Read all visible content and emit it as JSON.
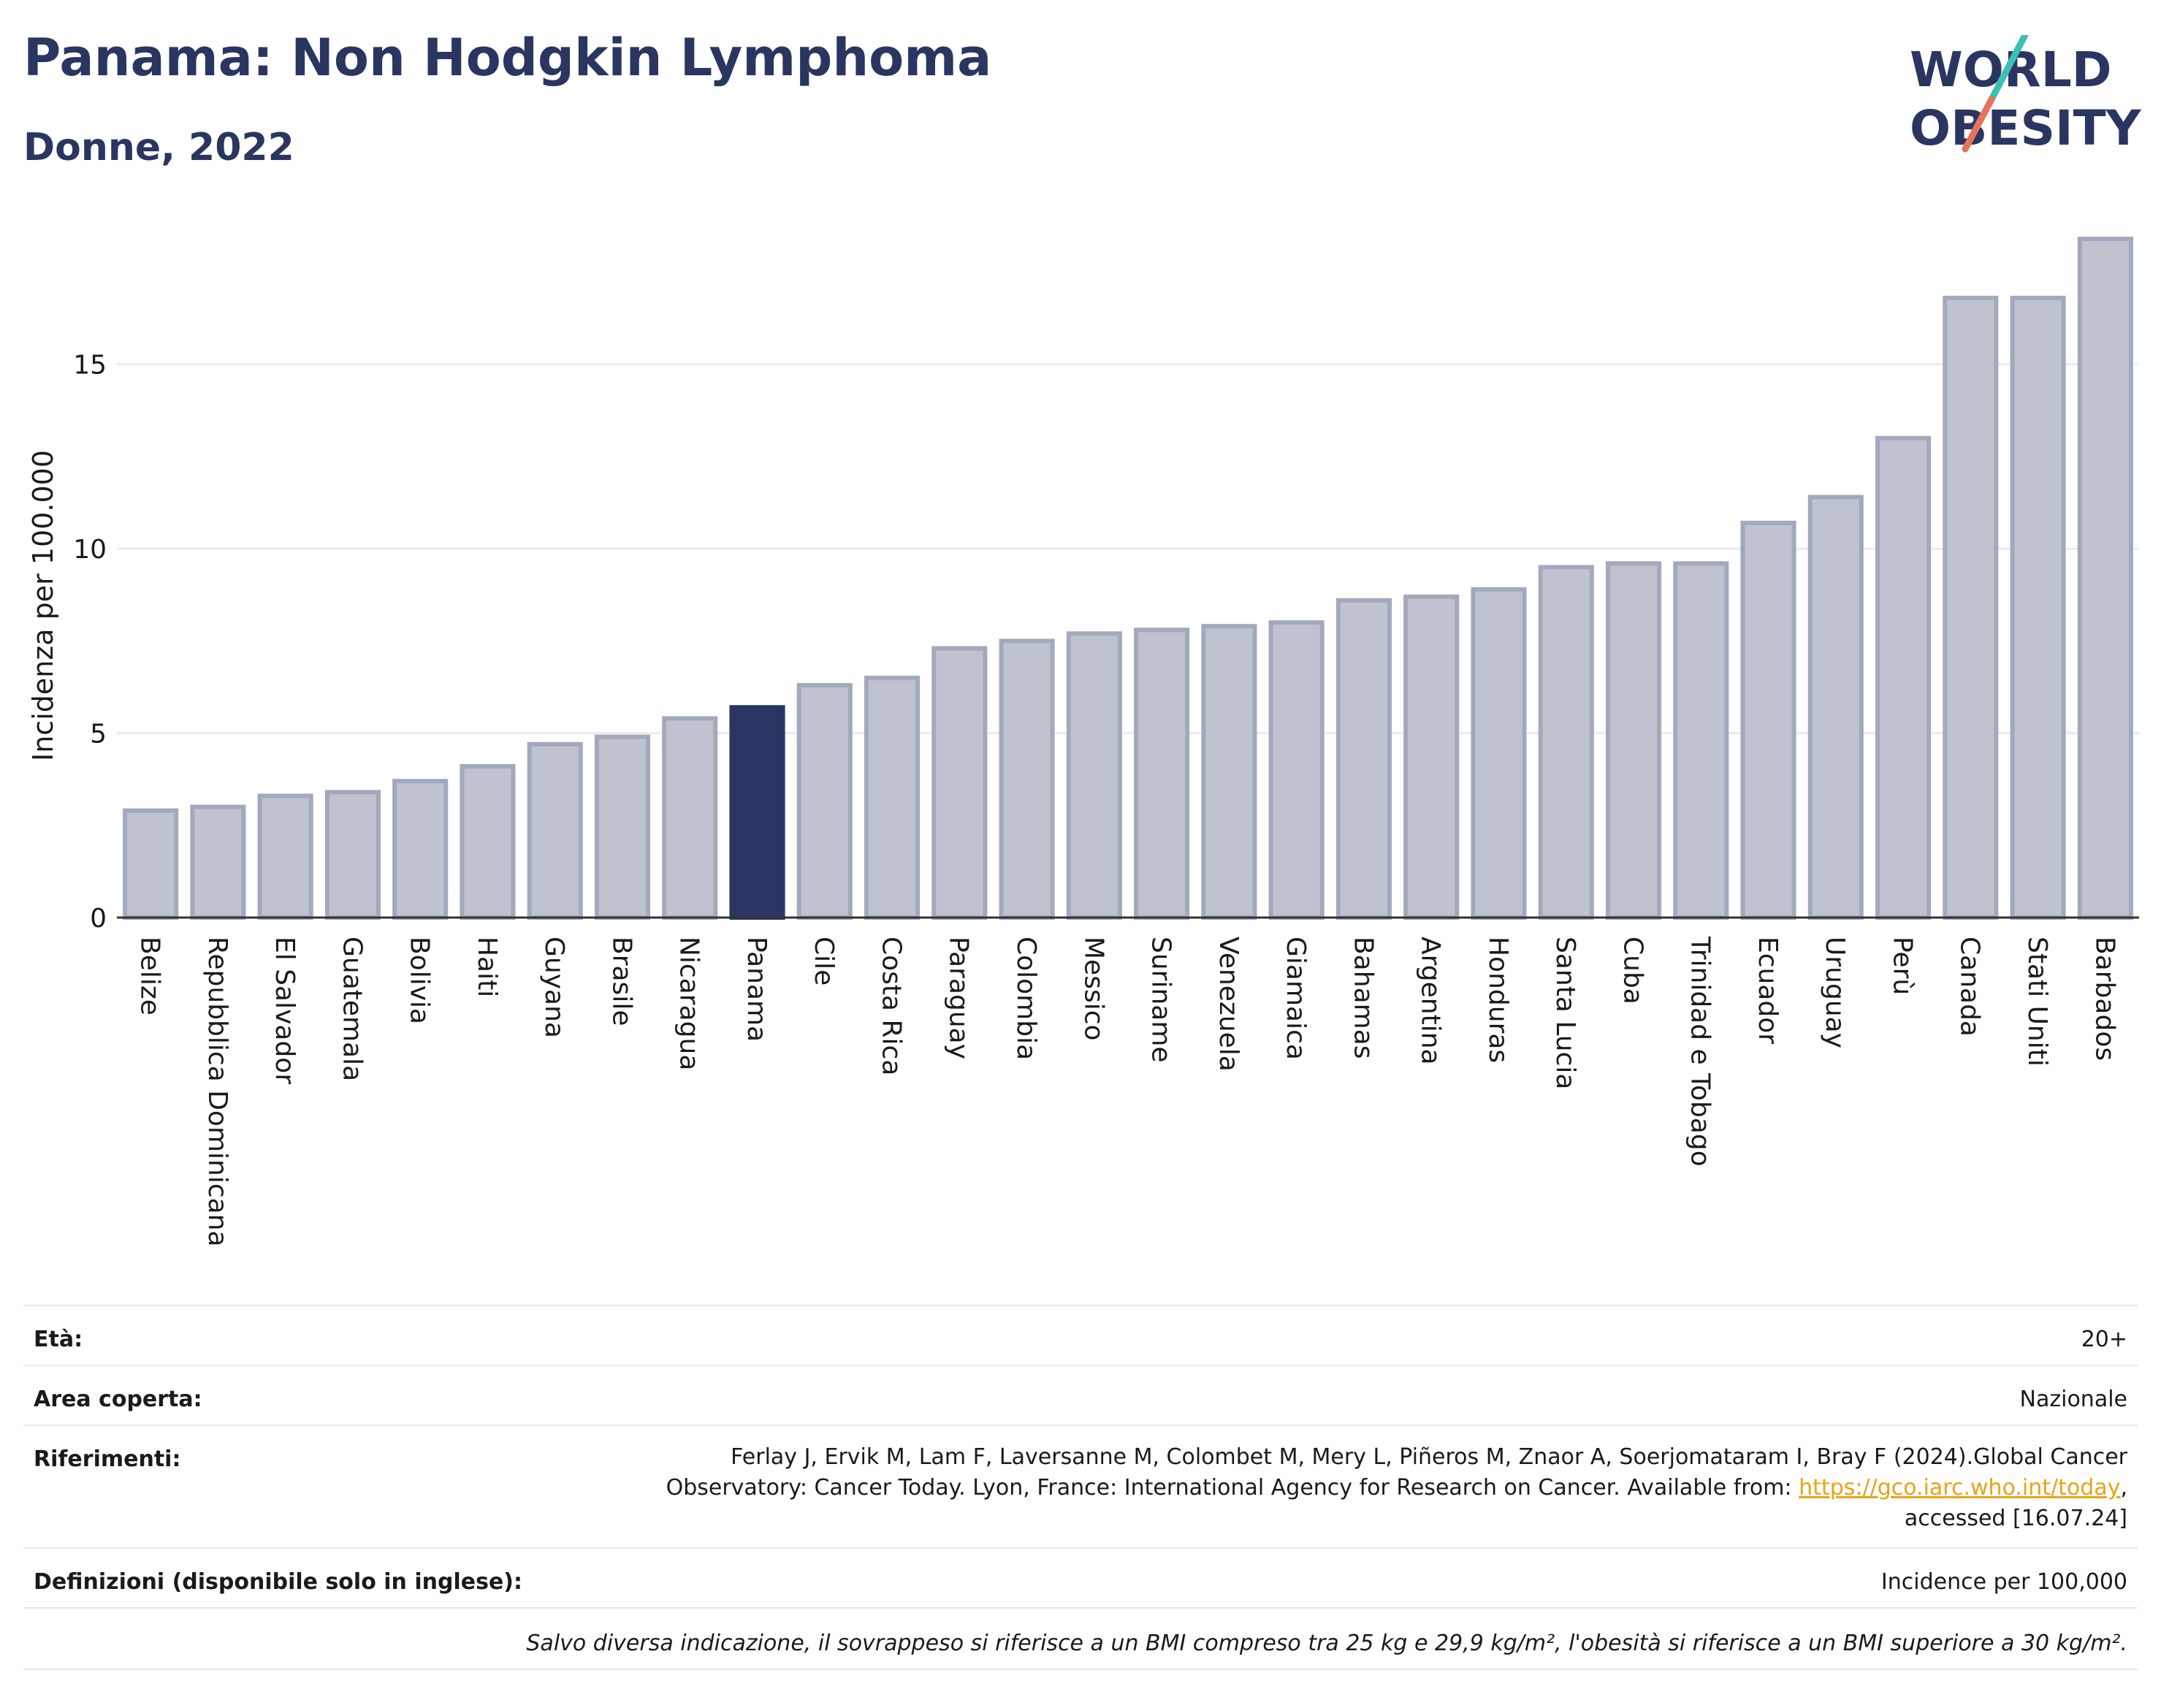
{
  "header": {
    "title": "Panama: Non Hodgkin Lymphoma",
    "subtitle": "Donne, 2022",
    "logo_text_line1": "WORLD",
    "logo_text_line2": "OBESITY"
  },
  "colors": {
    "title": "#2b3561",
    "bar_default": "#bfc3d0",
    "bar_default_stroke": "#a3a9bd",
    "bar_highlight": "#2b3561",
    "grid": "#e9ebf1",
    "logo_teal": "#3cbfb4",
    "logo_coral": "#e8735a",
    "link": "#e8a317"
  },
  "chart_data": {
    "type": "bar",
    "ylabel": "Incidenza per 100.000",
    "xlabel": "",
    "ylim": [
      0,
      18.5
    ],
    "yticks": [
      0,
      5,
      10,
      15
    ],
    "grid": true,
    "highlight": "Panama",
    "categories": [
      "Belize",
      "Repubblica Dominicana",
      "El Salvador",
      "Guatemala",
      "Bolivia",
      "Haiti",
      "Guyana",
      "Brasile",
      "Nicaragua",
      "Panama",
      "Cile",
      "Costa Rica",
      "Paraguay",
      "Colombia",
      "Messico",
      "Suriname",
      "Venezuela",
      "Giamaica",
      "Bahamas",
      "Argentina",
      "Honduras",
      "Santa Lucia",
      "Cuba",
      "Trinidad e Tobago",
      "Ecuador",
      "Uruguay",
      "Perù",
      "Canada",
      "Stati Uniti",
      "Barbados"
    ],
    "values": [
      2.9,
      3.0,
      3.3,
      3.4,
      3.7,
      4.1,
      4.7,
      4.9,
      5.4,
      5.7,
      6.3,
      6.5,
      7.3,
      7.5,
      7.7,
      7.8,
      7.9,
      8.0,
      8.6,
      8.7,
      8.9,
      9.5,
      9.6,
      9.6,
      10.7,
      11.4,
      13.0,
      16.8,
      16.8,
      18.4
    ]
  },
  "metadata": {
    "age_label": "Età:",
    "age_value": "20+",
    "area_label": "Area coperta:",
    "area_value": "Nazionale",
    "references_label": "Riferimenti:",
    "references_text_1": "Ferlay J, Ervik M, Lam F, Laversanne M, Colombet M, Mery L, Piñeros M, Znaor A, Soerjomataram I, Bray F (2024).Global Cancer",
    "references_text_2a": "Observatory: Cancer Today. Lyon, France: International Agency for Research on Cancer. Available from: ",
    "references_link": "https://gco.iarc.who.int/today",
    "references_text_2b": ",",
    "references_text_3": "accessed [16.07.24]",
    "definitions_label": "Definizioni (disponibile solo in inglese):",
    "definitions_value": "Incidence per 100,000",
    "note": "Salvo diversa indicazione, il sovrappeso si riferisce a un BMI compreso tra 25 kg e 29,9 kg/m², l'obesità si riferisce a un BMI superiore a 30 kg/m²."
  }
}
